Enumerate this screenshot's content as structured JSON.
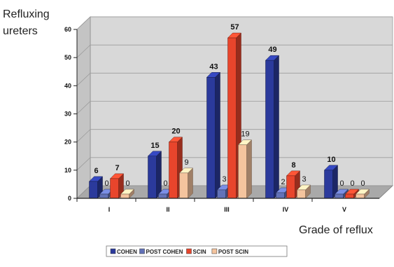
{
  "chart_data": {
    "type": "bar",
    "title": "",
    "ylabel_lines": [
      "Refluxing",
      "ureters"
    ],
    "xlabel": "Grade of reflux",
    "categories": [
      "I",
      "II",
      "III",
      "IV",
      "V"
    ],
    "ylim": [
      0,
      60
    ],
    "yticks": [
      "0",
      "10",
      "20",
      "30",
      "40",
      "50",
      "60"
    ],
    "grid": true,
    "legend_position": "bottom",
    "series": [
      {
        "name": "COHEN",
        "values": [
          6,
          15,
          43,
          49,
          10
        ],
        "labels": [
          "6",
          "15",
          "43",
          "49",
          "10"
        ],
        "color": "#2b3a9c"
      },
      {
        "name": "POST COHEN",
        "values": [
          0,
          0,
          3,
          2,
          0
        ],
        "labels": [
          "0",
          "0",
          "3",
          "2",
          "0"
        ],
        "color": "#6272b8"
      },
      {
        "name": "SCIN",
        "values": [
          7,
          20,
          57,
          8,
          0
        ],
        "labels": [
          "7",
          "20",
          "57",
          "8",
          "0"
        ],
        "color": "#e8452c"
      },
      {
        "name": "POST SCIN",
        "values": [
          0,
          9,
          19,
          3,
          0
        ],
        "labels": [
          "0",
          "9",
          "19",
          "3",
          "0"
        ],
        "color": "#f4c49e"
      }
    ]
  }
}
